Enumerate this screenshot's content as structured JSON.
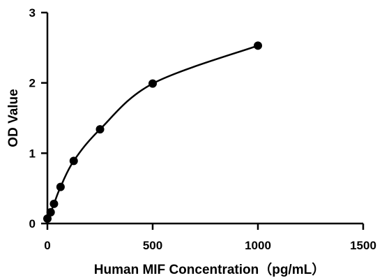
{
  "chart_data": {
    "type": "scatter",
    "title": "",
    "xlabel": "Human MIF Concentration（pg/mL）",
    "ylabel": "OD Value",
    "xlim": [
      0,
      1500
    ],
    "ylim": [
      0,
      3
    ],
    "xticks": [
      0,
      500,
      1000,
      1500
    ],
    "yticks": [
      0,
      1,
      2,
      3
    ],
    "grid": false,
    "legend": "none",
    "fit_curve": true,
    "series": [
      {
        "x": [
          0,
          15.6,
          31.25,
          62.5,
          125,
          250,
          500,
          1000
        ],
        "y": [
          0.07,
          0.16,
          0.28,
          0.52,
          0.89,
          1.34,
          1.99,
          2.53
        ]
      }
    ]
  }
}
